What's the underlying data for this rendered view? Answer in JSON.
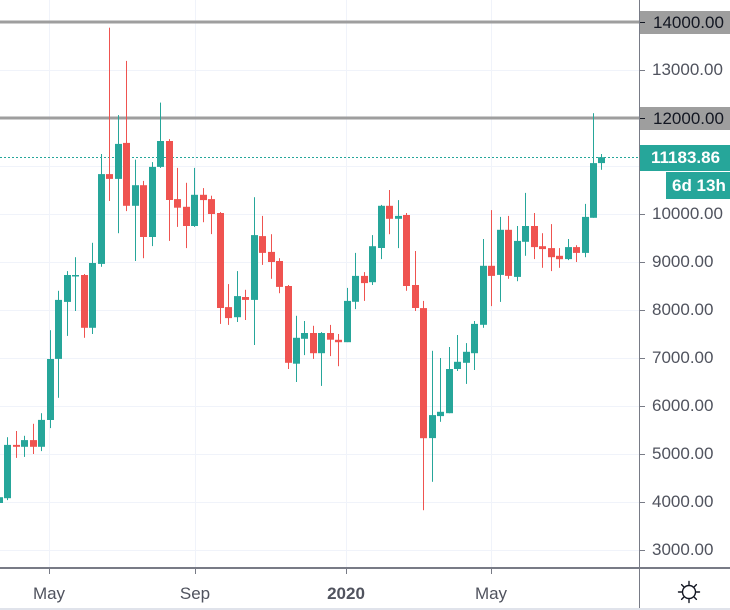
{
  "colors": {
    "up": "#26a69a",
    "down": "#ef5350",
    "drawing_line": "#9e9e9e",
    "grid": "#f0f3fa",
    "axis_line": "#787b86",
    "axis_text": "#50535e",
    "label_box_text": "#131722"
  },
  "corner": {
    "icon": "gear-icon"
  },
  "chart_data": {
    "type": "candlestick",
    "title": "",
    "xlabel": "",
    "ylabel": "",
    "grid": true,
    "grid_step": 1000,
    "ylim": [
      2625,
      14458
    ],
    "xlim_index": [
      0.118,
      75.42
    ],
    "y_ticks": [
      {
        "value": 13000,
        "label": "13000.00"
      },
      {
        "value": 10000,
        "label": "10000.00"
      },
      {
        "value": 9000,
        "label": "9000.00"
      },
      {
        "value": 8000,
        "label": "8000.00"
      },
      {
        "value": 7000,
        "label": "7000.00"
      },
      {
        "value": 6000,
        "label": "6000.00"
      },
      {
        "value": 5000,
        "label": "5000.00"
      },
      {
        "value": 4000,
        "label": "4000.00"
      },
      {
        "value": 3000,
        "label": "3000.00"
      }
    ],
    "x_ticks": [
      {
        "label": "May",
        "at_index": 5.89,
        "bold": false
      },
      {
        "label": "Sep",
        "at_index": 23.1,
        "bold": false
      },
      {
        "label": "2020",
        "at_index": 40.9,
        "bold": true
      },
      {
        "label": "May",
        "at_index": 58.0,
        "bold": false
      }
    ],
    "horizontal_lines": [
      {
        "price": 14000,
        "label": "14000.00"
      },
      {
        "price": 12000,
        "label": "12000.00"
      }
    ],
    "last_price": {
      "value": 11183.86,
      "label": "11183.86",
      "countdown": "6d 13h"
    },
    "candles_ohlc_fields": [
      "open",
      "high",
      "low",
      "close"
    ],
    "candles_ohlc": [
      [
        3980,
        4170,
        3940,
        4100
      ],
      [
        4080,
        5350,
        4040,
        5190
      ],
      [
        5190,
        5480,
        4920,
        5150
      ],
      [
        5150,
        5380,
        4940,
        5290
      ],
      [
        5290,
        5630,
        5000,
        5150
      ],
      [
        5150,
        5850,
        5060,
        5710
      ],
      [
        5710,
        7580,
        5540,
        6980
      ],
      [
        6980,
        8400,
        6170,
        8210
      ],
      [
        8170,
        8810,
        7460,
        8730
      ],
      [
        8710,
        9100,
        7980,
        8730
      ],
      [
        8730,
        8750,
        7420,
        7630
      ],
      [
        7630,
        9400,
        7500,
        8980
      ],
      [
        8960,
        11250,
        8900,
        10830
      ],
      [
        10830,
        13880,
        10270,
        10730
      ],
      [
        10730,
        12060,
        9600,
        11460
      ],
      [
        11480,
        13190,
        10060,
        10170
      ],
      [
        10170,
        11130,
        9020,
        10600
      ],
      [
        10600,
        10690,
        9080,
        9520
      ],
      [
        9520,
        11080,
        9330,
        10980
      ],
      [
        10980,
        12320,
        10960,
        11520
      ],
      [
        11520,
        11560,
        9440,
        10290
      ],
      [
        10310,
        10960,
        9730,
        10130
      ],
      [
        10150,
        10650,
        9290,
        9750
      ],
      [
        9750,
        10960,
        9730,
        10400
      ],
      [
        10400,
        10540,
        9830,
        10290
      ],
      [
        10310,
        10380,
        9580,
        10000
      ],
      [
        10020,
        10040,
        7710,
        8040
      ],
      [
        8060,
        8540,
        7690,
        7830
      ],
      [
        7850,
        8810,
        7750,
        8290
      ],
      [
        8270,
        8420,
        7790,
        8210
      ],
      [
        8210,
        10350,
        7270,
        9560
      ],
      [
        9540,
        9960,
        8940,
        9190
      ],
      [
        9210,
        9580,
        8650,
        9000
      ],
      [
        9020,
        9080,
        8350,
        8480
      ],
      [
        8500,
        8520,
        6770,
        6900
      ],
      [
        6880,
        7880,
        6500,
        7420
      ],
      [
        7400,
        7770,
        7060,
        7520
      ],
      [
        7520,
        7670,
        6980,
        7100
      ],
      [
        7100,
        7540,
        6420,
        7520
      ],
      [
        7520,
        7690,
        7040,
        7380
      ],
      [
        7380,
        7500,
        6830,
        7330
      ],
      [
        7330,
        8460,
        7330,
        8190
      ],
      [
        8170,
        9190,
        8020,
        8710
      ],
      [
        8710,
        8790,
        8190,
        8560
      ],
      [
        8580,
        9560,
        8520,
        9330
      ],
      [
        9290,
        10190,
        9060,
        10170
      ],
      [
        10170,
        10500,
        9580,
        9900
      ],
      [
        9900,
        10290,
        9290,
        9960
      ],
      [
        9980,
        10020,
        8400,
        8500
      ],
      [
        8520,
        9230,
        7980,
        8040
      ],
      [
        8040,
        8190,
        3830,
        5330
      ],
      [
        5330,
        7150,
        4420,
        5810
      ],
      [
        5790,
        7000,
        5670,
        5880
      ],
      [
        5850,
        7230,
        5850,
        6770
      ],
      [
        6770,
        7480,
        6730,
        6920
      ],
      [
        6900,
        7310,
        6460,
        7130
      ],
      [
        7100,
        7770,
        6750,
        7710
      ],
      [
        7690,
        9480,
        7630,
        8920
      ],
      [
        8920,
        10080,
        8080,
        8710
      ],
      [
        8730,
        9940,
        8170,
        9670
      ],
      [
        9670,
        9960,
        8650,
        8710
      ],
      [
        8690,
        9750,
        8600,
        9440
      ],
      [
        9420,
        10440,
        9130,
        9750
      ],
      [
        9750,
        10020,
        9060,
        9310
      ],
      [
        9330,
        9600,
        8880,
        9270
      ],
      [
        9290,
        9790,
        8810,
        9100
      ],
      [
        9130,
        9290,
        8880,
        9060
      ],
      [
        9060,
        9480,
        9040,
        9310
      ],
      [
        9310,
        9350,
        9000,
        9190
      ],
      [
        9190,
        10210,
        9100,
        9940
      ],
      [
        9920,
        12100,
        9920,
        11060
      ],
      [
        11060,
        11250,
        10920,
        11183.86
      ]
    ]
  }
}
